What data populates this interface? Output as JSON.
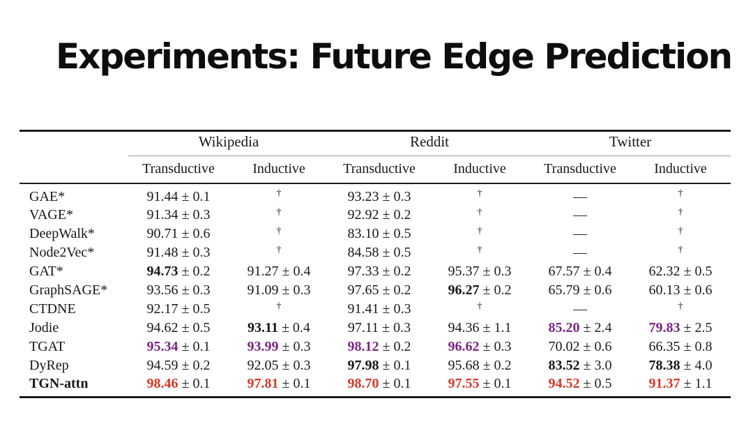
{
  "title": "Experiments: Future Edge Prediction",
  "colors": {
    "highlight_red": "#d63726",
    "highlight_purple": "#7b2483"
  },
  "table": {
    "groups": [
      {
        "label": "Wikipedia"
      },
      {
        "label": "Reddit"
      },
      {
        "label": "Twitter"
      }
    ],
    "subheaders": [
      "Transductive",
      "Inductive",
      "Transductive",
      "Inductive",
      "Transductive",
      "Inductive"
    ],
    "rows": [
      {
        "model": "GAE*",
        "bold_model": false,
        "cells": [
          {
            "style": "normal",
            "text": "91.44",
            "err": "± 0.1"
          },
          {
            "style": "dagger",
            "text": "†"
          },
          {
            "style": "normal",
            "text": "93.23",
            "err": "± 0.3"
          },
          {
            "style": "dagger",
            "text": "†"
          },
          {
            "style": "dash",
            "text": "—"
          },
          {
            "style": "dagger",
            "text": "†"
          }
        ]
      },
      {
        "model": "VAGE*",
        "bold_model": false,
        "cells": [
          {
            "style": "normal",
            "text": "91.34",
            "err": "± 0.3"
          },
          {
            "style": "dagger",
            "text": "†"
          },
          {
            "style": "normal",
            "text": "92.92",
            "err": "± 0.2"
          },
          {
            "style": "dagger",
            "text": "†"
          },
          {
            "style": "dash",
            "text": "—"
          },
          {
            "style": "dagger",
            "text": "†"
          }
        ]
      },
      {
        "model": "DeepWalk*",
        "bold_model": false,
        "cells": [
          {
            "style": "normal",
            "text": "90.71",
            "err": "± 0.6"
          },
          {
            "style": "dagger",
            "text": "†"
          },
          {
            "style": "normal",
            "text": "83.10",
            "err": "± 0.5"
          },
          {
            "style": "dagger",
            "text": "†"
          },
          {
            "style": "dash",
            "text": "—"
          },
          {
            "style": "dagger",
            "text": "†"
          }
        ]
      },
      {
        "model": "Node2Vec*",
        "bold_model": false,
        "cells": [
          {
            "style": "normal",
            "text": "91.48",
            "err": "± 0.3"
          },
          {
            "style": "dagger",
            "text": "†"
          },
          {
            "style": "normal",
            "text": "84.58",
            "err": "± 0.5"
          },
          {
            "style": "dagger",
            "text": "†"
          },
          {
            "style": "dash",
            "text": "—"
          },
          {
            "style": "dagger",
            "text": "†"
          }
        ]
      },
      {
        "model": "GAT*",
        "bold_model": false,
        "cells": [
          {
            "style": "bold",
            "text": "94.73",
            "err": "± 0.2"
          },
          {
            "style": "normal",
            "text": "91.27",
            "err": "± 0.4"
          },
          {
            "style": "normal",
            "text": "97.33",
            "err": "± 0.2"
          },
          {
            "style": "normal",
            "text": "95.37",
            "err": "± 0.3"
          },
          {
            "style": "normal",
            "text": "67.57",
            "err": "± 0.4"
          },
          {
            "style": "normal",
            "text": "62.32",
            "err": "± 0.5"
          }
        ]
      },
      {
        "model": "GraphSAGE*",
        "bold_model": false,
        "cells": [
          {
            "style": "normal",
            "text": "93.56",
            "err": "± 0.3"
          },
          {
            "style": "normal",
            "text": "91.09",
            "err": "± 0.3"
          },
          {
            "style": "normal",
            "text": "97.65",
            "err": "± 0.2"
          },
          {
            "style": "bold",
            "text": "96.27",
            "err": "± 0.2"
          },
          {
            "style": "normal",
            "text": "65.79",
            "err": "± 0.6"
          },
          {
            "style": "normal",
            "text": "60.13",
            "err": "± 0.6"
          }
        ]
      },
      {
        "model": "CTDNE",
        "bold_model": false,
        "cells": [
          {
            "style": "normal",
            "text": "92.17",
            "err": "± 0.5"
          },
          {
            "style": "dagger",
            "text": "†"
          },
          {
            "style": "normal",
            "text": "91.41",
            "err": "± 0.3"
          },
          {
            "style": "dagger",
            "text": "†"
          },
          {
            "style": "dash",
            "text": "—"
          },
          {
            "style": "dagger",
            "text": "†"
          }
        ]
      },
      {
        "model": "Jodie",
        "bold_model": false,
        "cells": [
          {
            "style": "normal",
            "text": "94.62",
            "err": "± 0.5"
          },
          {
            "style": "bold",
            "text": "93.11",
            "err": "± 0.4"
          },
          {
            "style": "normal",
            "text": "97.11",
            "err": "± 0.3"
          },
          {
            "style": "normal",
            "text": "94.36",
            "err": "± 1.1"
          },
          {
            "style": "purple",
            "text": "85.20",
            "err": "± 2.4"
          },
          {
            "style": "purple",
            "text": "79.83",
            "err": "± 2.5"
          }
        ]
      },
      {
        "model": "TGAT",
        "bold_model": false,
        "cells": [
          {
            "style": "purple",
            "text": "95.34",
            "err": "± 0.1"
          },
          {
            "style": "purple",
            "text": "93.99",
            "err": "± 0.3"
          },
          {
            "style": "purple",
            "text": "98.12",
            "err": "± 0.2"
          },
          {
            "style": "purple",
            "text": "96.62",
            "err": "± 0.3"
          },
          {
            "style": "normal",
            "text": "70.02",
            "err": "± 0.6"
          },
          {
            "style": "normal",
            "text": "66.35",
            "err": "± 0.8"
          }
        ]
      },
      {
        "model": "DyRep",
        "bold_model": false,
        "cells": [
          {
            "style": "normal",
            "text": "94.59",
            "err": "± 0.2"
          },
          {
            "style": "normal",
            "text": "92.05",
            "err": "± 0.3"
          },
          {
            "style": "bold",
            "text": "97.98",
            "err": "± 0.1"
          },
          {
            "style": "normal",
            "text": "95.68",
            "err": "± 0.2"
          },
          {
            "style": "bold",
            "text": "83.52",
            "err": "± 3.0"
          },
          {
            "style": "bold",
            "text": "78.38",
            "err": "± 4.0"
          }
        ]
      },
      {
        "model": "TGN-attn",
        "bold_model": true,
        "cells": [
          {
            "style": "red",
            "text": "98.46",
            "err": "± 0.1"
          },
          {
            "style": "red",
            "text": "97.81",
            "err": "± 0.1"
          },
          {
            "style": "red",
            "text": "98.70",
            "err": "± 0.1"
          },
          {
            "style": "red",
            "text": "97.55",
            "err": "± 0.1"
          },
          {
            "style": "red",
            "text": "94.52",
            "err": "± 0.5"
          },
          {
            "style": "red",
            "text": "91.37",
            "err": "± 1.1"
          }
        ]
      }
    ]
  }
}
